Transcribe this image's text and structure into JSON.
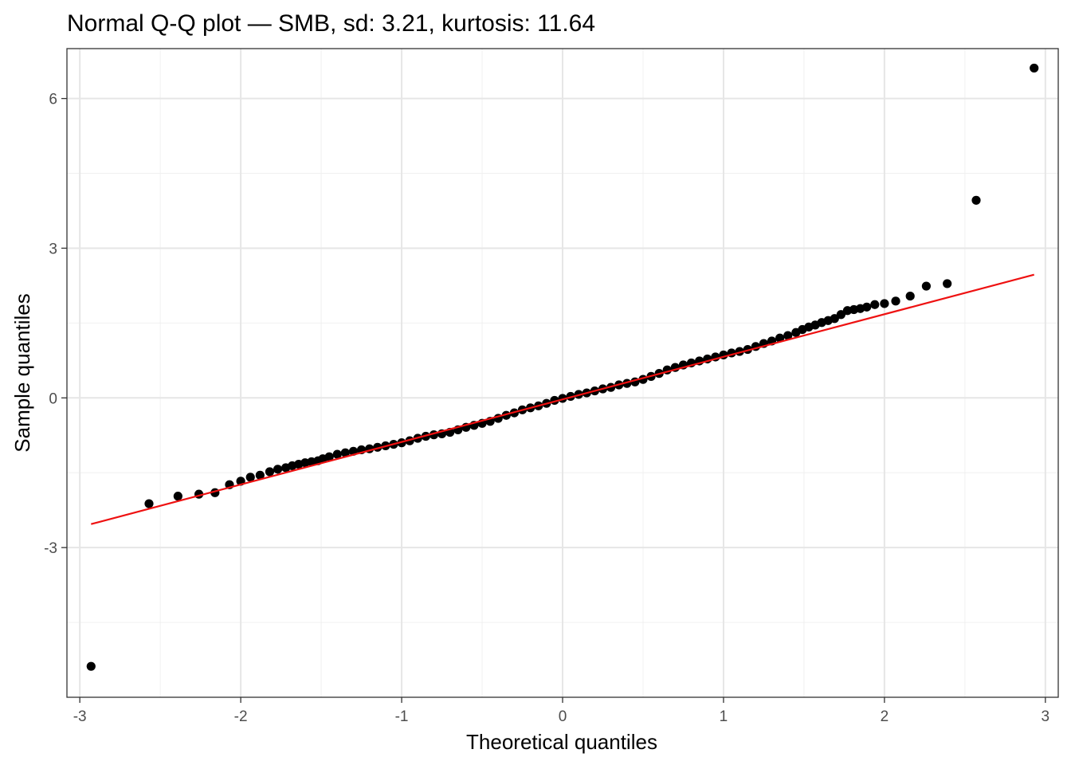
{
  "chart_data": {
    "type": "scatter",
    "title": "Normal Q-Q plot — SMB, sd: 3.21, kurtosis: 11.64",
    "xlabel": "Theoretical quantiles",
    "ylabel": "Sample quantiles",
    "xlim": [
      -3.08,
      3.08
    ],
    "ylim": [
      -6.0,
      7.0
    ],
    "x_ticks": [
      -3,
      -2,
      -1,
      0,
      1,
      2,
      3
    ],
    "x_tick_labels": [
      "-3",
      "-2",
      "-1",
      "0",
      "1",
      "2",
      "3"
    ],
    "y_ticks": [
      -3,
      0,
      3,
      6
    ],
    "y_tick_labels": [
      "-3",
      "0",
      "3",
      "6"
    ],
    "x_minor_ticks": [
      -2.5,
      -1.5,
      -0.5,
      0.5,
      1.5,
      2.5
    ],
    "y_minor_ticks": [
      -4.5,
      -1.5,
      1.5,
      4.5
    ],
    "grid": true,
    "points_color": "#000000",
    "reference_line": {
      "color": "#ee1111",
      "x": [
        -2.93,
        2.93
      ],
      "y": [
        -2.53,
        2.47
      ]
    },
    "series": [
      {
        "points": [
          [
            -2.93,
            -5.38
          ],
          [
            -2.57,
            -2.12
          ],
          [
            -2.39,
            -1.97
          ],
          [
            -2.26,
            -1.93
          ],
          [
            -2.16,
            -1.9
          ],
          [
            -2.07,
            -1.74
          ],
          [
            -2.0,
            -1.67
          ],
          [
            -1.94,
            -1.59
          ],
          [
            -1.88,
            -1.55
          ],
          [
            -1.82,
            -1.48
          ],
          [
            -1.77,
            -1.43
          ],
          [
            -1.72,
            -1.4
          ],
          [
            -1.68,
            -1.36
          ],
          [
            -1.64,
            -1.33
          ],
          [
            -1.6,
            -1.3
          ],
          [
            -1.56,
            -1.28
          ],
          [
            -1.52,
            -1.26
          ],
          [
            -1.49,
            -1.22
          ],
          [
            -1.45,
            -1.18
          ],
          [
            -1.4,
            -1.13
          ],
          [
            -1.35,
            -1.1
          ],
          [
            -1.3,
            -1.07
          ],
          [
            -1.25,
            -1.04
          ],
          [
            -1.2,
            -1.02
          ],
          [
            -1.15,
            -0.99
          ],
          [
            -1.1,
            -0.96
          ],
          [
            -1.05,
            -0.93
          ],
          [
            -1.0,
            -0.9
          ],
          [
            -0.95,
            -0.86
          ],
          [
            -0.9,
            -0.81
          ],
          [
            -0.85,
            -0.77
          ],
          [
            -0.8,
            -0.74
          ],
          [
            -0.75,
            -0.72
          ],
          [
            -0.7,
            -0.69
          ],
          [
            -0.65,
            -0.64
          ],
          [
            -0.6,
            -0.59
          ],
          [
            -0.55,
            -0.55
          ],
          [
            -0.5,
            -0.51
          ],
          [
            -0.45,
            -0.47
          ],
          [
            -0.4,
            -0.41
          ],
          [
            -0.35,
            -0.35
          ],
          [
            -0.3,
            -0.3
          ],
          [
            -0.25,
            -0.24
          ],
          [
            -0.2,
            -0.2
          ],
          [
            -0.15,
            -0.16
          ],
          [
            -0.1,
            -0.11
          ],
          [
            -0.05,
            -0.05
          ],
          [
            0.0,
            -0.01
          ],
          [
            0.05,
            0.03
          ],
          [
            0.1,
            0.07
          ],
          [
            0.15,
            0.1
          ],
          [
            0.2,
            0.14
          ],
          [
            0.25,
            0.18
          ],
          [
            0.3,
            0.21
          ],
          [
            0.35,
            0.26
          ],
          [
            0.4,
            0.29
          ],
          [
            0.45,
            0.32
          ],
          [
            0.5,
            0.37
          ],
          [
            0.55,
            0.43
          ],
          [
            0.6,
            0.49
          ],
          [
            0.65,
            0.56
          ],
          [
            0.7,
            0.61
          ],
          [
            0.75,
            0.66
          ],
          [
            0.8,
            0.7
          ],
          [
            0.85,
            0.74
          ],
          [
            0.9,
            0.78
          ],
          [
            0.95,
            0.82
          ],
          [
            1.0,
            0.86
          ],
          [
            1.05,
            0.9
          ],
          [
            1.1,
            0.93
          ],
          [
            1.15,
            0.97
          ],
          [
            1.2,
            1.03
          ],
          [
            1.25,
            1.09
          ],
          [
            1.3,
            1.14
          ],
          [
            1.35,
            1.2
          ],
          [
            1.4,
            1.25
          ],
          [
            1.45,
            1.31
          ],
          [
            1.49,
            1.37
          ],
          [
            1.53,
            1.42
          ],
          [
            1.57,
            1.46
          ],
          [
            1.61,
            1.51
          ],
          [
            1.65,
            1.55
          ],
          [
            1.69,
            1.59
          ],
          [
            1.73,
            1.67
          ],
          [
            1.77,
            1.75
          ],
          [
            1.81,
            1.77
          ],
          [
            1.85,
            1.79
          ],
          [
            1.89,
            1.82
          ],
          [
            1.94,
            1.87
          ],
          [
            2.0,
            1.89
          ],
          [
            2.07,
            1.94
          ],
          [
            2.16,
            2.04
          ],
          [
            2.26,
            2.24
          ],
          [
            2.39,
            2.29
          ],
          [
            2.57,
            3.96
          ],
          [
            2.93,
            6.61
          ]
        ]
      }
    ]
  }
}
